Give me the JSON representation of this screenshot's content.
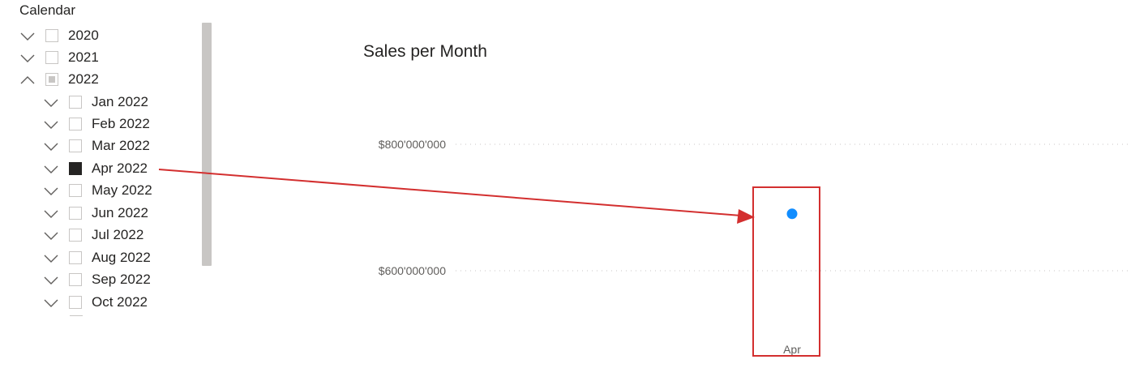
{
  "slicer": {
    "title": "Calendar",
    "items": [
      {
        "label": "2020",
        "level": 0,
        "expanded": false,
        "state": "unchecked"
      },
      {
        "label": "2021",
        "level": 0,
        "expanded": false,
        "state": "unchecked"
      },
      {
        "label": "2022",
        "level": 0,
        "expanded": true,
        "state": "partial"
      },
      {
        "label": "Jan 2022",
        "level": 1,
        "expanded": false,
        "state": "unchecked"
      },
      {
        "label": "Feb 2022",
        "level": 1,
        "expanded": false,
        "state": "unchecked"
      },
      {
        "label": "Mar 2022",
        "level": 1,
        "expanded": false,
        "state": "unchecked"
      },
      {
        "label": "Apr 2022",
        "level": 1,
        "expanded": false,
        "state": "checked"
      },
      {
        "label": "May 2022",
        "level": 1,
        "expanded": false,
        "state": "unchecked"
      },
      {
        "label": "Jun 2022",
        "level": 1,
        "expanded": false,
        "state": "unchecked"
      },
      {
        "label": "Jul 2022",
        "level": 1,
        "expanded": false,
        "state": "unchecked"
      },
      {
        "label": "Aug 2022",
        "level": 1,
        "expanded": false,
        "state": "unchecked"
      },
      {
        "label": "Sep 2022",
        "level": 1,
        "expanded": false,
        "state": "unchecked"
      },
      {
        "label": "Oct 2022",
        "level": 1,
        "expanded": false,
        "state": "unchecked"
      }
    ]
  },
  "chart": {
    "title": "Sales per Month"
  },
  "chart_data": {
    "type": "line",
    "title": "Sales per Month",
    "categories": [
      "Apr"
    ],
    "series": [
      {
        "values": [
          690000000
        ],
        "color": "#118dff"
      }
    ],
    "y_ticks": [
      {
        "value": 600000000,
        "label": "$600'000'000"
      },
      {
        "value": 800000000,
        "label": "$800'000'000"
      }
    ],
    "ylim": [
      500000000,
      900000000
    ],
    "grid": true,
    "xlabel": "",
    "ylabel": ""
  },
  "annotation": {
    "color": "#d32f2f"
  }
}
